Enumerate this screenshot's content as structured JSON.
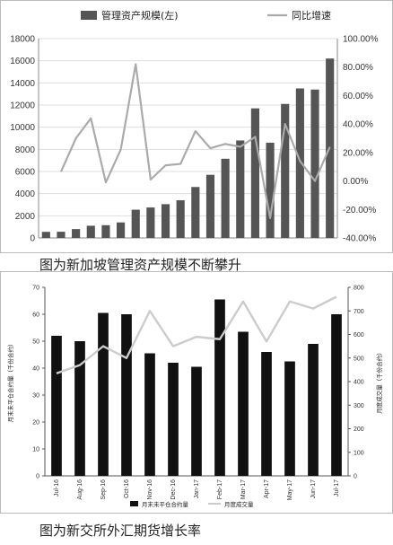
{
  "chart_data": [
    {
      "type": "bar",
      "title": "",
      "xlabel": "",
      "ylabel": "",
      "legend_position": "top",
      "grid": true,
      "ylim": [
        0,
        18000
      ],
      "y_ticks": [
        "0",
        "2000",
        "4000",
        "6000",
        "8000",
        "10000",
        "12000",
        "14000",
        "16000",
        "18000"
      ],
      "y2lim": [
        -40,
        100
      ],
      "y2_ticks": [
        "-40.00%",
        "-20.00%",
        "0.00%",
        "20.00%",
        "40.00%",
        "60.00%",
        "80.00%",
        "100.00%"
      ],
      "series": [
        {
          "name": "管理资产规模(左)",
          "type": "bar",
          "axis": "left",
          "color": "#555555",
          "values": [
            550,
            560,
            800,
            1100,
            1150,
            1400,
            2550,
            2750,
            3050,
            3400,
            4600,
            5700,
            7150,
            8800,
            11700,
            8600,
            12100,
            13500,
            13400,
            16200
          ]
        },
        {
          "name": "同比增速",
          "type": "line",
          "axis": "right",
          "color": "#aaaaaa",
          "values": [
            null,
            6.5,
            30,
            44,
            -1,
            22,
            82,
            1,
            11,
            12,
            35,
            23,
            26,
            24,
            31,
            -26,
            40,
            14,
            0,
            24
          ]
        }
      ]
    },
    {
      "type": "bar",
      "title": "",
      "xlabel": "",
      "ylabel": "月末未平仓合约量（千份合约）",
      "y2label": "月度成交量（千份合约）",
      "legend_position": "bottom",
      "grid": false,
      "categories": [
        "Jul-16",
        "Aug-16",
        "Sep-16",
        "Oct-16",
        "Nov-16",
        "Dec-16",
        "Jan-17",
        "Feb-17",
        "Mar-17",
        "Apr-17",
        "May-17",
        "Jun-17",
        "Jul-17"
      ],
      "ylim": [
        0,
        70
      ],
      "y_ticks": [
        "0",
        "10",
        "20",
        "30",
        "40",
        "50",
        "60",
        "70"
      ],
      "y2lim": [
        0,
        800
      ],
      "y2_ticks": [
        "0",
        "100",
        "200",
        "300",
        "400",
        "500",
        "600",
        "700",
        "800"
      ],
      "series": [
        {
          "name": "月末未平仓合约量",
          "type": "bar",
          "axis": "left",
          "color": "#111111",
          "values": [
            52,
            50,
            60.5,
            60,
            45.5,
            42,
            40.5,
            65.5,
            53.5,
            46,
            42.5,
            49,
            60
          ]
        },
        {
          "name": "月度成交量",
          "type": "line",
          "axis": "right",
          "color": "#cccccc",
          "values": [
            435,
            470,
            550,
            500,
            700,
            550,
            590,
            580,
            740,
            570,
            740,
            710,
            760
          ]
        }
      ]
    }
  ],
  "captions": {
    "chart1": "图为新加坡管理资产规模不断攀升",
    "chart2": "图为新交所外汇期货增长率"
  }
}
